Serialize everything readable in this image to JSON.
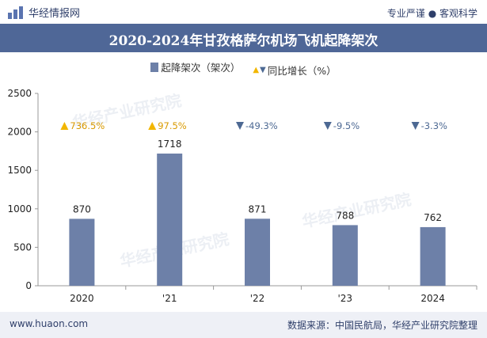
{
  "header": {
    "brand": "华经情报网",
    "slogan": "专业严谨 ● 客观科学"
  },
  "title": "2020-2024年甘孜格萨尔机场飞机起降架次",
  "legend": {
    "series1": "起降架次（架次）",
    "series2": "同比增长（%）"
  },
  "colors": {
    "bar": "#6d80a8",
    "up": "#f2b600",
    "down": "#4d6993",
    "title_bg": "#4f6797"
  },
  "watermark": "华经产业研究院",
  "chart_data": {
    "type": "bar",
    "categories": [
      "2020",
      "'21",
      "'22",
      "'23",
      "2024"
    ],
    "series": [
      {
        "name": "起降架次（架次）",
        "values": [
          870,
          1718,
          871,
          788,
          762
        ]
      },
      {
        "name": "同比增长（%）",
        "values": [
          736.5,
          97.5,
          -49.3,
          -9.5,
          -3.3
        ],
        "labels": [
          "736.5%",
          "97.5%",
          "-49.3%",
          "-9.5%",
          "-3.3%"
        ]
      }
    ],
    "y_ticks": [
      0,
      500,
      1000,
      1500,
      2000,
      2500
    ],
    "ylim": [
      0,
      2500
    ],
    "grid": false,
    "legend_position": "top"
  },
  "footer": {
    "website": "www.huaon.com",
    "source": "数据来源：中国民航局，华经产业研究院整理"
  }
}
